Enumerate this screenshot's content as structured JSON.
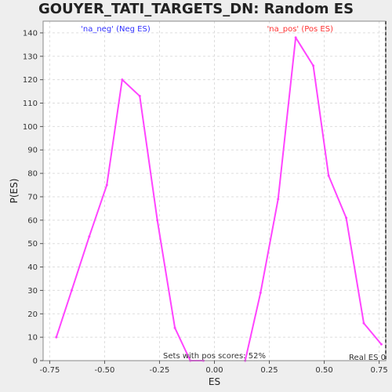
{
  "chart_data": {
    "type": "line",
    "title": "GOUYER_TATI_TARGETS_DN: Random ES distribution",
    "xlabel": "ES",
    "ylabel": "P(ES)",
    "xlim": [
      -0.78,
      0.78
    ],
    "ylim": [
      0,
      145
    ],
    "x_ticks": [
      "-0.75",
      "-0.50",
      "-0.25",
      "0.00",
      "0.25",
      "0.50",
      "0.75"
    ],
    "y_ticks": [
      "0",
      "10",
      "20",
      "30",
      "40",
      "50",
      "60",
      "70",
      "80",
      "90",
      "100",
      "110",
      "120",
      "130",
      "140"
    ],
    "grid": true,
    "series": [
      {
        "name": "'na_neg' (Neg ES)",
        "color": "#ff44ff",
        "x": [
          -0.72,
          -0.65,
          -0.57,
          -0.49,
          -0.42,
          -0.34,
          -0.26,
          -0.18,
          -0.11,
          -0.05
        ],
        "y": [
          10,
          30,
          53,
          75,
          120,
          113,
          60,
          14,
          0,
          0
        ]
      },
      {
        "name": "'na_pos' (Pos ES)",
        "color": "#ff44ff",
        "x": [
          0.14,
          0.21,
          0.29,
          0.37,
          0.45,
          0.52,
          0.6,
          0.68,
          0.76
        ],
        "y": [
          0,
          29,
          69,
          138,
          126,
          79,
          61,
          16,
          7
        ]
      }
    ],
    "series_label_colors": [
      "#3333ff",
      "#ff3333"
    ],
    "real_es": 0.78,
    "real_es_label": "Real ES 0",
    "annotation": "Sets with pos scores: 52%"
  }
}
